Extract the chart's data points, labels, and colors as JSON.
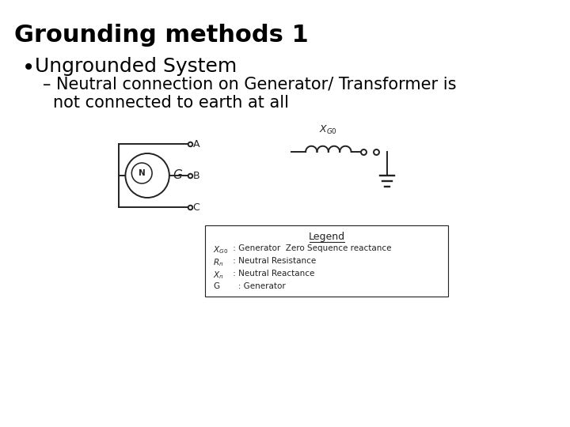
{
  "title": "Grounding methods 1",
  "bullet1": "Ungrounded System",
  "sub_line1": "– Neutral connection on Generator/ Transformer is",
  "sub_line2": "not connected to earth at all",
  "bg_color": "#ffffff",
  "text_color": "#000000",
  "title_fontsize": 22,
  "bullet_fontsize": 18,
  "sub_bullet_fontsize": 15,
  "legend_title": "Legend",
  "legend_entries": [
    [
      "$X_{G0}$",
      " : Generator  Zero Sequence reactance"
    ],
    [
      "$R_n$",
      " : Neutral Resistance"
    ],
    [
      "$X_n$",
      " : Neutral Reactance"
    ],
    [
      "G",
      "   : Generator"
    ]
  ]
}
